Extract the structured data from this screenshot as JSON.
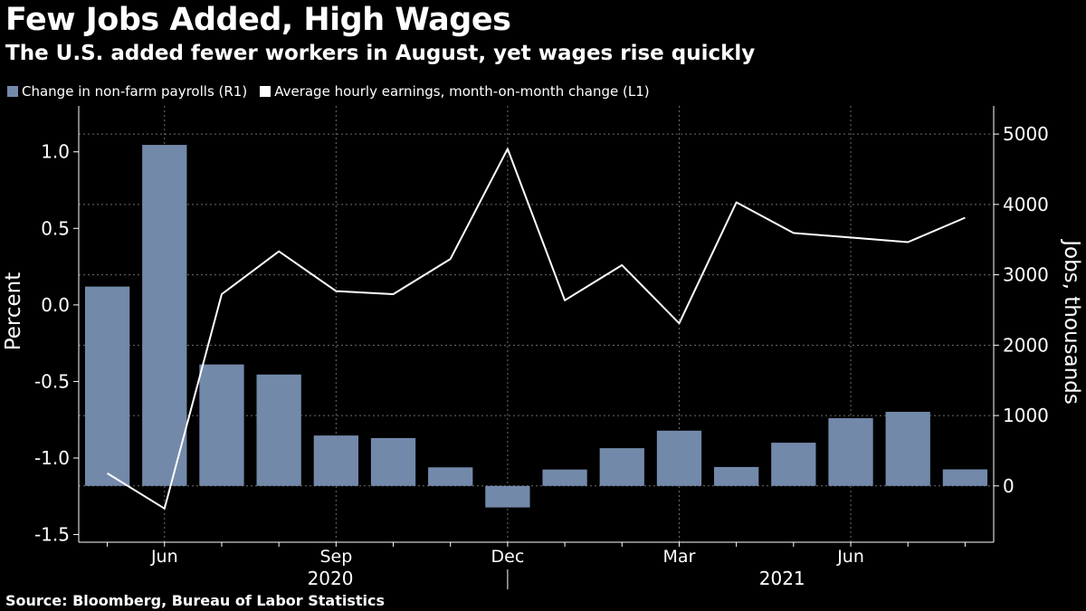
{
  "colors": {
    "background": "#000000",
    "text": "#ffffff",
    "bars": "#7389aa",
    "line": "#ffffff",
    "grid": "#6e6e6e"
  },
  "source": "Source: Bloomberg, Bureau of Labor Statistics",
  "chart_data": {
    "type": "bar",
    "title": "Few Jobs Added, High Wages",
    "subtitle": "The U.S. added fewer workers in August, yet wages rise quickly",
    "legend": [
      "Change in non-farm payrolls (R1)",
      "Average hourly earnings, month-on-month change (L1)"
    ],
    "legend_position": "top-left",
    "ylabel_left": "Percent",
    "ylabel_right": "Jobs, thousands",
    "ylim_left": [
      -1.55,
      1.3
    ],
    "yticks_left": [
      "1.0",
      "0.5",
      "0.0",
      "-0.5",
      "-1.0",
      "-1.5"
    ],
    "yticks_left_values": [
      1.0,
      0.5,
      0.0,
      -0.5,
      -1.0,
      -1.5
    ],
    "ylim_right": [
      -800,
      5400
    ],
    "yticks_right": [
      "5000",
      "4000",
      "3000",
      "2000",
      "1000",
      "0"
    ],
    "yticks_right_values": [
      5000,
      4000,
      3000,
      2000,
      1000,
      0
    ],
    "categories": [
      "May 2020",
      "Jun 2020",
      "Jul 2020",
      "Aug 2020",
      "Sep 2020",
      "Oct 2020",
      "Nov 2020",
      "Dec 2020",
      "Jan 2021",
      "Feb 2021",
      "Mar 2021",
      "Apr 2021",
      "May 2021",
      "Jun 2021",
      "Jul 2021",
      "Aug 2021"
    ],
    "x_month_labels": [
      {
        "index": 1,
        "label": "Jun"
      },
      {
        "index": 4,
        "label": "Sep"
      },
      {
        "index": 7,
        "label": "Dec"
      },
      {
        "index": 10,
        "label": "Mar"
      },
      {
        "index": 13,
        "label": "Jun"
      }
    ],
    "x_year_labels": [
      {
        "center": 3.9,
        "label": "2020"
      },
      {
        "center": 11.8,
        "label": "2021"
      }
    ],
    "year_divider_index": 7.0,
    "series": [
      {
        "name": "Change in non-farm payrolls (R1)",
        "type": "bar",
        "axis": "right",
        "values": [
          2833,
          4846,
          1726,
          1583,
          716,
          680,
          264,
          -306,
          233,
          536,
          785,
          269,
          614,
          962,
          1053,
          235
        ]
      },
      {
        "name": "Average hourly earnings, month-on-month change (L1)",
        "type": "line",
        "axis": "left",
        "values": [
          -1.1,
          -1.33,
          0.07,
          0.35,
          0.09,
          0.07,
          0.3,
          1.02,
          0.03,
          0.26,
          -0.12,
          0.67,
          0.47,
          0.44,
          0.41,
          0.57
        ]
      }
    ]
  }
}
